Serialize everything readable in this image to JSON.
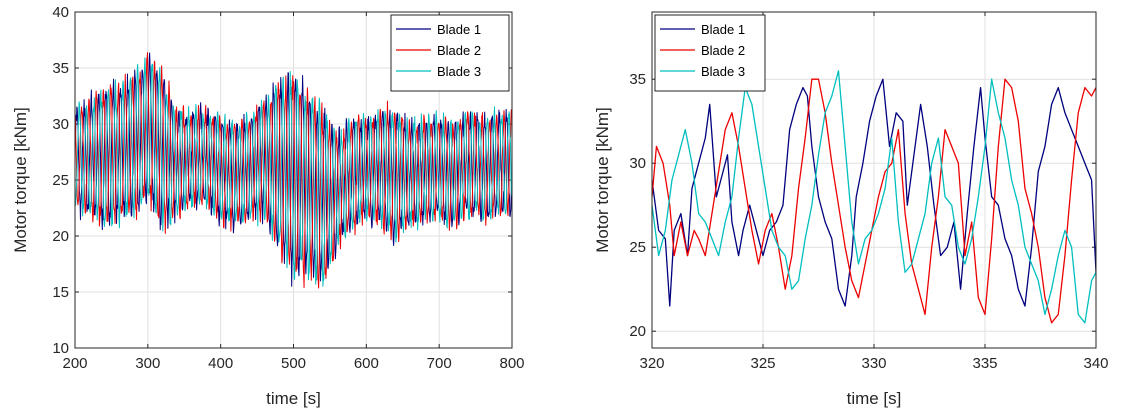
{
  "chart_data": [
    {
      "type": "line",
      "xlabel": "time [s]",
      "ylabel": "Motor torque [kNm]",
      "xlim": [
        200,
        800
      ],
      "ylim": [
        10,
        40
      ],
      "xticks": [
        200,
        300,
        400,
        500,
        600,
        700,
        800
      ],
      "yticks": [
        10,
        15,
        20,
        25,
        30,
        35,
        40
      ],
      "grid": true,
      "legend_position": "top-right",
      "x_step": 20,
      "series": [
        {
          "name": "Blade 1",
          "color": "#00007f",
          "center": [
            27,
            27,
            27,
            27.5,
            28,
            29.5,
            27.5,
            26.5,
            27,
            27,
            26,
            25.5,
            26,
            27,
            26,
            25.5,
            24.5,
            23.5,
            24,
            25.5,
            26,
            26,
            25.5,
            25.5,
            26,
            26,
            25.5,
            26.5,
            26,
            26.5,
            26.5
          ],
          "amp": [
            5,
            5.5,
            7,
            6.5,
            7,
            7,
            7.5,
            5,
            4.5,
            4.5,
            5,
            5,
            5,
            5.5,
            8.5,
            10,
            9,
            8.5,
            5.5,
            5.5,
            5,
            5.5,
            6.5,
            5,
            5,
            5,
            5,
            5,
            5,
            5,
            5
          ]
        },
        {
          "name": "Blade 2",
          "color": "#ee0000",
          "center": [
            27,
            27,
            27,
            27.5,
            28,
            29.5,
            27.5,
            26.5,
            27,
            27,
            26,
            25.5,
            26,
            27,
            26,
            25.5,
            24.5,
            23.5,
            24,
            25.5,
            26,
            26,
            25.5,
            25.5,
            26,
            26,
            25.5,
            26.5,
            26,
            26.5,
            26.5
          ],
          "amp": [
            5,
            5.5,
            7,
            6.5,
            7,
            7,
            7.5,
            5,
            4.5,
            4.5,
            5,
            5,
            5,
            5.5,
            8.5,
            10,
            9,
            8.5,
            5.5,
            5.5,
            5,
            5.5,
            6.5,
            5,
            5,
            5,
            5,
            5,
            5,
            5,
            5
          ]
        },
        {
          "name": "Blade 3",
          "color": "#00bfbf",
          "center": [
            27,
            27,
            27,
            27.5,
            28,
            29.5,
            27.5,
            26.5,
            27,
            27,
            26,
            25.5,
            26,
            27,
            26,
            25.5,
            24.5,
            23.5,
            24,
            25.5,
            26,
            26,
            25.5,
            25.5,
            26,
            26,
            25.5,
            26.5,
            26,
            26.5,
            26.5
          ],
          "amp": [
            5,
            5.5,
            7,
            6.5,
            7,
            7,
            7.5,
            5,
            4.5,
            4.5,
            5,
            5,
            5,
            5.5,
            8.5,
            10,
            9,
            8.5,
            5.5,
            5.5,
            5,
            5.5,
            6.5,
            5,
            5,
            5,
            5,
            5,
            5,
            5,
            5
          ]
        }
      ]
    },
    {
      "type": "line",
      "xlabel": "time [s]",
      "ylabel": "Motor torque [kNm]",
      "xlim": [
        320,
        340
      ],
      "ylim": [
        19,
        39
      ],
      "xticks": [
        320,
        325,
        330,
        335,
        340
      ],
      "yticks": [
        20,
        25,
        30,
        35
      ],
      "grid": true,
      "legend_position": "top-left",
      "series": [
        {
          "name": "Blade 1",
          "color": "#00007f",
          "x": [
            320,
            320.3,
            320.6,
            320.8,
            321,
            321.3,
            321.6,
            321.8,
            322.1,
            322.4,
            322.6,
            322.9,
            323.1,
            323.4,
            323.6,
            323.9,
            324.1,
            324.4,
            324.7,
            325,
            325.3,
            325.6,
            325.9,
            326.2,
            326.5,
            326.8,
            327,
            327.2,
            327.5,
            327.8,
            328.1,
            328.4,
            328.7,
            329,
            329.2,
            329.5,
            329.8,
            330.1,
            330.4,
            330.7,
            331,
            331.3,
            331.5,
            331.8,
            332.1,
            332.4,
            332.7,
            333,
            333.3,
            333.6,
            333.9,
            334.2,
            334.5,
            334.8,
            335,
            335.3,
            335.6,
            335.9,
            336.2,
            336.5,
            336.8,
            337.1,
            337.4,
            337.7,
            338,
            338.3,
            338.6,
            338.9,
            339.2,
            339.5,
            339.8,
            340
          ],
          "y": [
            29,
            26,
            25.5,
            21.5,
            26,
            27,
            24.5,
            28.5,
            30,
            31.5,
            33.5,
            28,
            29,
            30.5,
            26.5,
            24.5,
            26,
            27.5,
            26,
            24.5,
            26,
            26.5,
            27.5,
            32,
            33.5,
            34.5,
            34,
            31,
            28,
            26.5,
            25.5,
            22.5,
            21.5,
            24.5,
            28,
            30,
            32.5,
            34,
            35,
            31,
            33,
            32.5,
            27.5,
            30.5,
            33.5,
            31,
            27.5,
            24.5,
            25,
            26.5,
            22.5,
            27,
            31,
            34.5,
            31.5,
            28,
            27.5,
            25.5,
            24.5,
            22.5,
            21.5,
            25,
            29.5,
            31,
            33.5,
            34.5,
            33,
            32,
            31,
            30,
            29,
            23.5
          ]
        },
        {
          "name": "Blade 2",
          "color": "#ee0000",
          "x": [
            320,
            320.2,
            320.5,
            320.8,
            321,
            321.3,
            321.6,
            321.9,
            322.1,
            322.4,
            322.7,
            323,
            323.3,
            323.6,
            323.9,
            324.2,
            324.5,
            324.8,
            325.1,
            325.4,
            325.7,
            326,
            326.3,
            326.6,
            326.9,
            327.2,
            327.5,
            327.8,
            328.1,
            328.4,
            328.7,
            329,
            329.3,
            329.6,
            329.9,
            330.2,
            330.5,
            330.8,
            331.1,
            331.4,
            331.7,
            332,
            332.3,
            332.6,
            332.9,
            333.2,
            333.5,
            333.8,
            334.1,
            334.4,
            334.7,
            335,
            335.3,
            335.6,
            335.9,
            336.2,
            336.5,
            336.8,
            337.1,
            337.4,
            337.7,
            338,
            338.3,
            338.6,
            338.9,
            339.2,
            339.5,
            339.8,
            340
          ],
          "y": [
            28,
            31,
            30,
            27.5,
            24.5,
            26.5,
            24.5,
            26,
            25.5,
            24.5,
            27,
            29.5,
            32,
            33,
            31,
            28.5,
            26,
            24,
            26,
            27,
            25,
            22.5,
            24.5,
            28.5,
            31.5,
            35,
            35,
            33,
            30,
            27.5,
            25,
            23,
            22,
            24,
            26,
            28,
            29.5,
            30,
            32,
            27,
            24,
            22.5,
            21,
            25,
            28,
            32,
            31,
            30,
            24.5,
            26.5,
            22,
            21,
            25.5,
            31,
            35,
            34.5,
            32.5,
            28.5,
            27,
            25,
            22,
            20.5,
            21,
            24.5,
            29,
            33,
            34.5,
            34,
            34.5
          ]
        },
        {
          "name": "Blade 3",
          "color": "#00bfbf",
          "x": [
            320,
            320.3,
            320.6,
            320.9,
            321.2,
            321.5,
            321.8,
            322.1,
            322.4,
            322.7,
            323,
            323.3,
            323.6,
            323.9,
            324.2,
            324.5,
            324.8,
            325.1,
            325.4,
            325.7,
            326,
            326.3,
            326.6,
            326.9,
            327.2,
            327.5,
            327.8,
            328.1,
            328.4,
            328.7,
            329,
            329.3,
            329.6,
            329.9,
            330.2,
            330.5,
            330.8,
            331.1,
            331.4,
            331.7,
            332,
            332.3,
            332.6,
            332.9,
            333.2,
            333.5,
            333.8,
            334.1,
            334.4,
            334.7,
            335,
            335.3,
            335.6,
            335.9,
            336.2,
            336.5,
            336.8,
            337.1,
            337.4,
            337.7,
            338,
            338.3,
            338.6,
            338.9,
            339.2,
            339.5,
            339.8,
            340
          ],
          "y": [
            27.5,
            24.5,
            26,
            29,
            30.5,
            32,
            30,
            27,
            26.5,
            25.5,
            24.5,
            26.5,
            28,
            31.5,
            34.5,
            33.5,
            31,
            28.5,
            26,
            25,
            24.5,
            22.5,
            23,
            25.5,
            27.5,
            30.5,
            33,
            34,
            35.5,
            31,
            26.5,
            24,
            25.5,
            26,
            27,
            28.5,
            31.5,
            26.5,
            23.5,
            24,
            25.5,
            27,
            30,
            31.5,
            28,
            27.5,
            25,
            24,
            25.5,
            28,
            31,
            35,
            33,
            31.5,
            29,
            27.5,
            25,
            24,
            23,
            21,
            22.5,
            24.5,
            26,
            25,
            21,
            20.5,
            23,
            23.5
          ]
        }
      ]
    }
  ]
}
